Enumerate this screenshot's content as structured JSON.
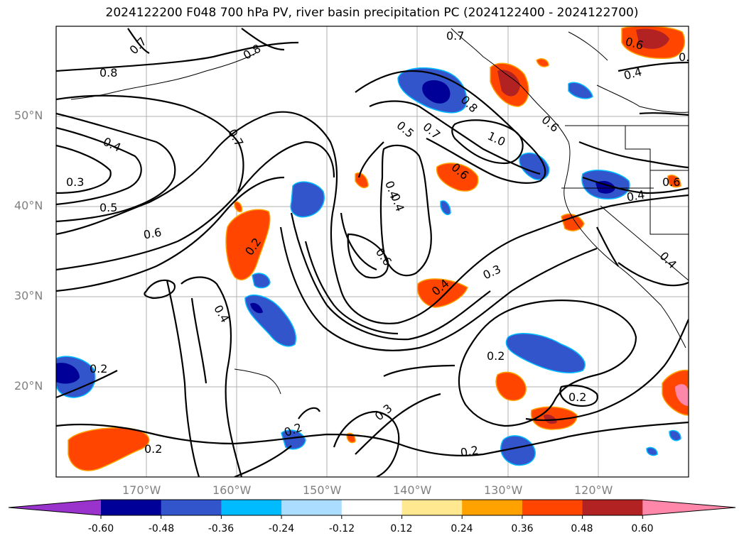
{
  "title": "2024122200 F048 700 hPa PV, river basin precipitation PC (2024122400 - 2024122700)",
  "map": {
    "lon_range": [
      -180,
      -110
    ],
    "lat_range": [
      10,
      60
    ],
    "lat_labels": [
      {
        "lat": 50,
        "text": "50°N"
      },
      {
        "lat": 40,
        "text": "40°N"
      },
      {
        "lat": 30,
        "text": "30°N"
      },
      {
        "lat": 20,
        "text": "20°N"
      }
    ],
    "lon_labels": [
      {
        "lon": -170,
        "text": "170°W"
      },
      {
        "lon": -160,
        "text": "160°W"
      },
      {
        "lon": -150,
        "text": "150°W"
      },
      {
        "lon": -140,
        "text": "140°W"
      },
      {
        "lon": -130,
        "text": "130°W"
      },
      {
        "lon": -120,
        "text": "120°W"
      }
    ],
    "contour_labels": [
      "0.7",
      "0.8",
      "0.8",
      "0.7",
      "0.4",
      "0.3",
      "0.5",
      "0.6",
      "0.7",
      "0.2",
      "0.4",
      "0.5",
      "0.7",
      "0.8",
      "1.0",
      "0.6",
      "0.4",
      "0.6",
      "0.4",
      "0.3",
      "0.6",
      "0.4",
      "0.4",
      "0.6",
      "0.4",
      "0.2",
      "0.2",
      "0.2",
      "0.3",
      "0.2",
      "0.2",
      "0.2",
      "0.4",
      "0.6",
      "0.8"
    ]
  },
  "colorbar": {
    "colors": [
      "#9933cc",
      "#000099",
      "#3355cc",
      "#00bbff",
      "#aaddff",
      "#ffffff",
      "#ffe88f",
      "#ffa200",
      "#ff4500",
      "#b22222",
      "#ff88aa"
    ],
    "tick_labels": [
      "-0.60",
      "-0.48",
      "-0.36",
      "-0.24",
      "-0.12",
      "0.12",
      "0.24",
      "0.36",
      "0.48",
      "0.60"
    ]
  }
}
